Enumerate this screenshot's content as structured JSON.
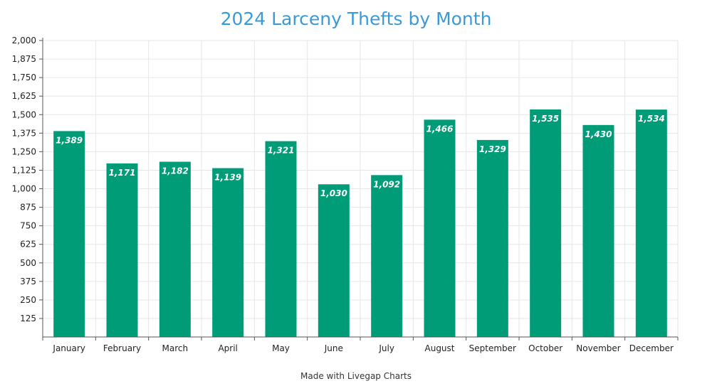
{
  "title": "2024 Larceny Thefts by Month",
  "credit": "Made with Livegap Charts",
  "colors": {
    "bar": "#009b77",
    "title": "#3a9ad9",
    "grid": "#e6e6e6",
    "axis": "#555555"
  },
  "chart_data": {
    "type": "bar",
    "title": "2024 Larceny Thefts by Month",
    "xlabel": "",
    "ylabel": "",
    "categories": [
      "January",
      "February",
      "March",
      "April",
      "May",
      "June",
      "July",
      "August",
      "September",
      "October",
      "November",
      "December"
    ],
    "values": [
      1389,
      1171,
      1182,
      1139,
      1321,
      1030,
      1092,
      1466,
      1329,
      1535,
      1430,
      1534
    ],
    "value_labels": [
      "1,389",
      "1,171",
      "1,182",
      "1,139",
      "1,321",
      "1,030",
      "1,092",
      "1,466",
      "1,329",
      "1,535",
      "1,430",
      "1,534"
    ],
    "yticks": [
      125,
      250,
      375,
      500,
      625,
      750,
      875,
      1000,
      1125,
      1250,
      1375,
      1500,
      1625,
      1750,
      1875,
      2000
    ],
    "ytick_labels": [
      "125",
      "250",
      "375",
      "500",
      "625",
      "750",
      "875",
      "1,000",
      "1,125",
      "1,250",
      "1,375",
      "1,500",
      "1,625",
      "1,750",
      "1,875",
      "2,000"
    ],
    "ylim": [
      0,
      2000
    ],
    "grid": true,
    "legend": "none"
  }
}
